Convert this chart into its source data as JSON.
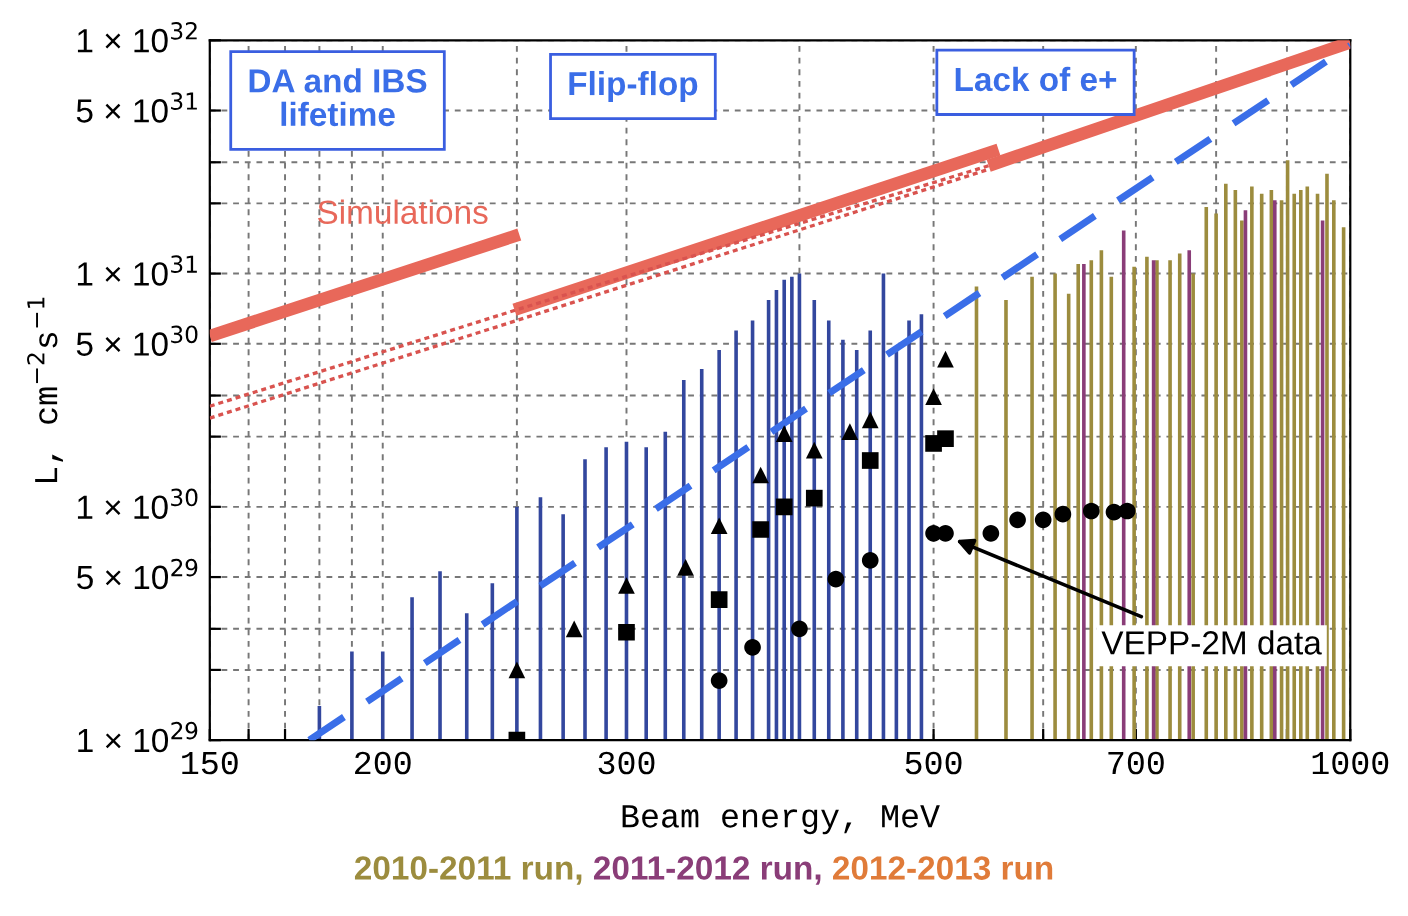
{
  "chart_data": {
    "type": "bar",
    "xlabel": "Beam energy, MeV",
    "ylabel": "L, cm$^{−2}$s$^{−1}$",
    "log": "xy",
    "xlim": [
      150,
      1000
    ],
    "ylim": [
      1e+29,
      1e+32
    ],
    "xticks": [
      150,
      {
        "value": 160,
        "label": null
      },
      {
        "value": 170,
        "label": null
      },
      {
        "value": 180,
        "label": null
      },
      {
        "value": 190,
        "label": null
      },
      200,
      {
        "value": 250,
        "label": null
      },
      300,
      {
        "value": 400,
        "label": null
      },
      500,
      {
        "value": 600,
        "label": null
      },
      700,
      {
        "value": 800,
        "label": null
      },
      {
        "value": 900,
        "label": null
      },
      1000
    ],
    "yticks": [
      {
        "value": 1e+29,
        "label": "1 × 10$^{29}$"
      },
      {
        "value": 2e+29,
        "label": null
      },
      {
        "value": 3e+29,
        "label": null
      },
      {
        "value": 5e+29,
        "label": "5 × 10$^{29}$"
      },
      {
        "value": 1e+30,
        "label": "1 × 10$^{30}$"
      },
      {
        "value": 2e+30,
        "label": null
      },
      {
        "value": 3e+30,
        "label": null
      },
      {
        "value": 5e+30,
        "label": "5 × 10$^{30}$"
      },
      {
        "value": 1e+31,
        "label": "1 × 10$^{31}$"
      },
      {
        "value": 2e+31,
        "label": null
      },
      {
        "value": 3e+31,
        "label": null
      },
      {
        "value": 5e+31,
        "label": "5 × 10$^{31}$"
      },
      {
        "value": 1e+32,
        "label": "1 × 10$^{32}$"
      }
    ],
    "grid": true,
    "legend": "bottom",
    "series": [
      {
        "color": "#33479e",
        "x": [
          180,
          190,
          200,
          210,
          220,
          230,
          240,
          250,
          260,
          270,
          280,
          290,
          300,
          310,
          320,
          330,
          340,
          350,
          360,
          370,
          380,
          385,
          390,
          395,
          400,
          410,
          420,
          430,
          440,
          450,
          460,
          470,
          480,
          490
        ],
        "base": [
          1e+29,
          1e+29,
          1e+29,
          1e+29,
          1e+29,
          1e+29,
          1e+29,
          1e+29,
          1e+29,
          1e+29,
          1e+29,
          1e+29,
          1e+29,
          1e+29,
          1e+29,
          1e+29,
          1e+29,
          1e+29,
          1e+29,
          1e+29,
          1e+29,
          1e+29,
          1e+29,
          1e+29,
          1e+29,
          1e+29,
          1e+29,
          1e+29,
          1e+29,
          1e+29,
          1e+29,
          1e+29,
          1e+29,
          1e+29
        ],
        "values": [
          4e+28,
          1.4e+29,
          1.4e+29,
          3.1e+29,
          4.3e+29,
          2.5e+29,
          3.7e+29,
          9e+29,
          1e+30,
          8.3e+29,
          1.5e+30,
          1.7e+30,
          1.8e+30,
          1.7e+30,
          2e+30,
          3.4e+30,
          3.8e+30,
          4.6e+30,
          5.6e+30,
          6.2e+30,
          7.6e+30,
          8.4e+30,
          9.3e+30,
          9.6e+30,
          9.9e+30,
          7.6e+30,
          6.2e+30,
          5.1e+30,
          4.6e+30,
          5.6e+30,
          9.9e+30,
          4.6e+30,
          6.2e+30,
          6.6e+30
        ]
      },
      {
        "type": "bar",
        "name": "2010-2011 run,",
        "color": "#9c8c3e",
        "x": [
          537,
          564,
          589,
          612,
          626,
          636,
          650,
          661,
          672,
          698,
          713,
          725,
          741,
          753,
          770,
          787,
          800,
          813,
          826,
          835,
          849,
          863,
          877,
          892,
          901,
          911,
          921,
          931,
          947,
          962,
          973,
          989
        ],
        "base": [
          1e+29,
          1e+29,
          1e+29,
          1e+29,
          1e+29,
          1e+29,
          1e+29,
          1e+29,
          1e+29,
          1e+29,
          1e+29,
          1e+29,
          1e+29,
          1e+29,
          1e+29,
          1e+29,
          1e+29,
          1e+29,
          1e+29,
          1e+29,
          1e+29,
          1e+29,
          1e+29,
          1e+29,
          1e+29,
          1e+29,
          1e+29,
          1e+29,
          1e+29,
          1e+29,
          1e+29,
          1e+29
        ],
        "values": [
          8.7e+30,
          7.6e+30,
          9.6e+30,
          9.9e+30,
          8.1e+30,
          1.09e+31,
          1.13e+31,
          1.25e+31,
          9.6e+30,
          1.06e+31,
          1.17e+31,
          1.13e+31,
          1.13e+31,
          1.21e+31,
          9.9e+30,
          1.92e+31,
          1.8e+31,
          2.42e+31,
          2.27e+31,
          1.68e+31,
          2.35e+31,
          2.19e+31,
          2.27e+31,
          2.05e+31,
          3.05e+31,
          2.19e+31,
          2.27e+31,
          2.35e+31,
          2.19e+31,
          2.67e+31,
          2.05e+31,
          1.57e+31
        ]
      },
      {
        "type": "bar",
        "name": "2011-2012 run,",
        "color": "#8a3d78",
        "x": [
          642,
          686,
          721,
          765,
          840,
          882,
          955
        ],
        "base": [
          1e+29,
          1e+29,
          1e+29,
          1e+29,
          1e+29,
          1e+29,
          1e+29
        ],
        "values": [
          1.09e+31,
          1.52e+31,
          1.13e+31,
          1.25e+31,
          1.86e+31,
          2.05e+31,
          1.68e+31
        ]
      },
      {
        "type": "scatter",
        "name": "2012-2013 run",
        "color": "#e07b39"
      },
      {
        "type": "line",
        "color": "#e8685a",
        "line_style": "solid",
        "x": [
          150,
          251
        ],
        "values": [
          5.4e+30,
          1.47e+31
        ]
      },
      {
        "type": "line",
        "color": "#e8685a",
        "line_style": "solid",
        "x": [
          249,
          557
        ],
        "values": [
          7e+30,
          3.4e+31
        ]
      },
      {
        "type": "line",
        "color": "#e8685a",
        "line_style": "solid",
        "x": [
          548,
          1000
        ],
        "values": [
          2.9e+31,
          9.8e+31
        ]
      },
      {
        "type": "line",
        "color": "#d9534f",
        "line_style": "dotted",
        "x": [
          150,
          250,
          548
        ],
        "values": [
          2.7e+30,
          7e+30,
          2.9e+31
        ]
      },
      {
        "type": "line",
        "color": "#d9534f",
        "line_style": "dotted",
        "x": [
          150,
          250,
          548
        ],
        "values": [
          2.4e+30,
          6.3e+30,
          2.8e+31
        ]
      },
      {
        "type": "line",
        "color": "#3a6ee8",
        "line_style": "dashed",
        "x": [
          177,
          1000
        ],
        "values": [
          1e+29,
          9.5e+31
        ]
      },
      {
        "type": "scatter",
        "marker": "triangle",
        "color": "#000000",
        "x": [
          250,
          275,
          300,
          331,
          350,
          375,
          390,
          410,
          435,
          450,
          500,
          510
        ],
        "values": [
          2e+29,
          3e+29,
          4.6e+29,
          5.5e+29,
          8.3e+29,
          1.37e+30,
          2.06e+30,
          1.75e+30,
          2.1e+30,
          2.36e+30,
          2.97e+30,
          4.3e+30
        ]
      },
      {
        "type": "scatter",
        "marker": "square",
        "color": "#000000",
        "x": [
          250,
          300,
          350,
          375,
          390,
          410,
          450,
          500,
          510
        ],
        "values": [
          1e+29,
          2.9e+29,
          4e+29,
          8e+29,
          1e+30,
          1.09e+30,
          1.58e+30,
          1.87e+30,
          1.96e+30
        ]
      },
      {
        "type": "scatter",
        "marker": "circle",
        "color": "#000000",
        "x": [
          350,
          370,
          400,
          425,
          450,
          500,
          510,
          550,
          575,
          600,
          620,
          650,
          675,
          690
        ],
        "values": [
          1.8e+29,
          2.5e+29,
          3e+29,
          4.9e+29,
          5.9e+29,
          7.7e+29,
          7.7e+29,
          7.7e+29,
          8.8e+29,
          8.8e+29,
          9.3e+29,
          9.6e+29,
          9.5e+29,
          9.6e+29
        ]
      }
    ],
    "annotations": [
      "DA and IBS\nlifetime",
      "Flip-flop",
      "Lack of e+",
      {
        "text": "Simulations",
        "x": 251,
        "y": 1.47e+31
      },
      {
        "text": "VEPP-2M data",
        "x": 519,
        "y": 7.2e+29
      }
    ]
  }
}
